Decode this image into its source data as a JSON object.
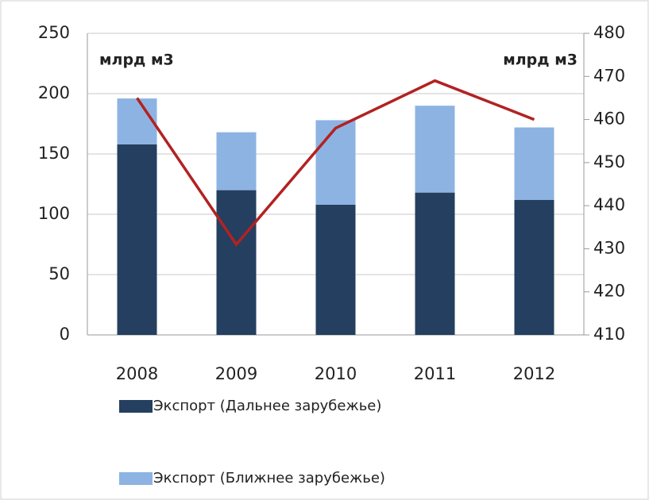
{
  "chart_data": {
    "type": "bar",
    "categories": [
      "2008",
      "2009",
      "2010",
      "2011",
      "2012"
    ],
    "series": [
      {
        "name": "Экспорт (Дальнее зарубежье)",
        "color": "#243f60",
        "values": [
          158,
          120,
          108,
          118,
          112
        ]
      },
      {
        "name": "Экспорт (Ближнее зарубежье)",
        "color": "#8db3e2",
        "values": [
          38,
          48,
          70,
          72,
          60
        ]
      },
      {
        "type": "line",
        "axis": "y2",
        "color": "#b22222",
        "values": [
          465,
          431,
          458,
          469,
          460
        ]
      }
    ],
    "stacked": true,
    "ylim": [
      0,
      250
    ],
    "yticks": [
      0,
      50,
      100,
      150,
      200,
      250
    ],
    "y2lim": [
      410,
      480
    ],
    "y2ticks": [
      410,
      420,
      430,
      440,
      450,
      460,
      470,
      480
    ],
    "grid": true,
    "annotations": [
      "млрд м3",
      "млрд м3"
    ],
    "legend": "bottom"
  }
}
